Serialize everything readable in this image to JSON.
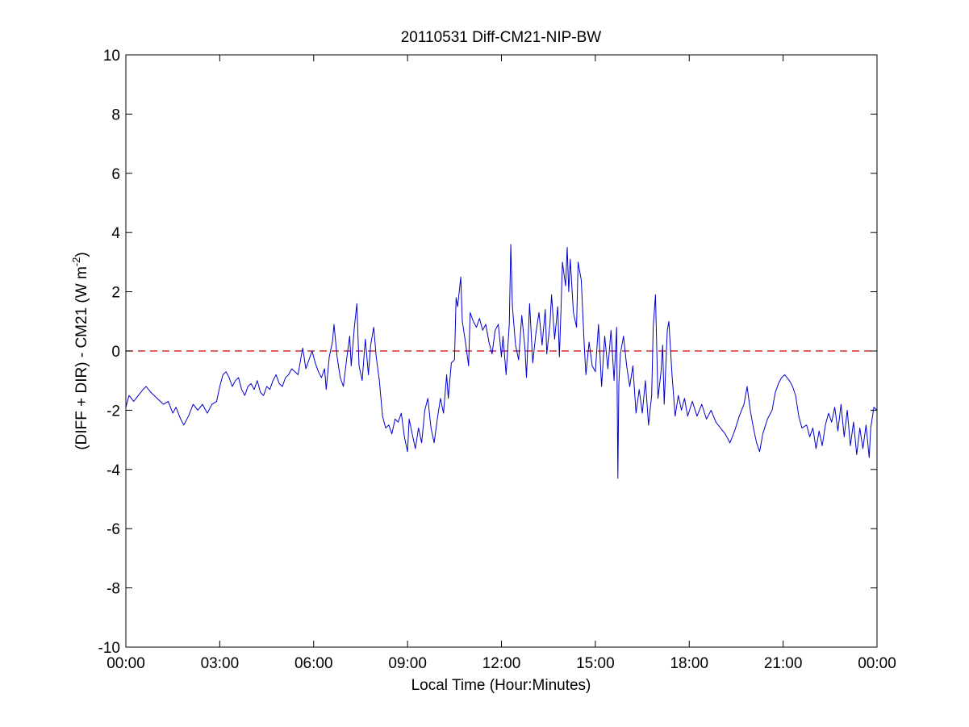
{
  "chart_data": {
    "type": "line",
    "title": "20110531 Diff-CM21-NIP-BW",
    "xlabel": "Local Time (Hour:Minutes)",
    "ylabel_main": "(DIFF + DIR) - CM21 (W m",
    "ylabel_sup": "-2",
    "ylabel_close": ")",
    "xlim": [
      0,
      24
    ],
    "ylim": [
      -10,
      10
    ],
    "x_ticks": [
      0,
      3,
      6,
      9,
      12,
      15,
      18,
      21,
      24
    ],
    "x_tick_labels": [
      "00:00",
      "03:00",
      "06:00",
      "09:00",
      "12:00",
      "15:00",
      "18:00",
      "21:00",
      "00:00"
    ],
    "y_ticks": [
      -10,
      -8,
      -6,
      -4,
      -2,
      0,
      2,
      4,
      6,
      8,
      10
    ],
    "y_tick_labels": [
      "-10",
      "-8",
      "-6",
      "-4",
      "-2",
      "0",
      "2",
      "4",
      "6",
      "8",
      "10"
    ],
    "grid": false,
    "reference_line": {
      "y": 0,
      "color": "#cc0000",
      "style": "dashed"
    },
    "series": [
      {
        "color": "#0000cc",
        "points": [
          [
            0.0,
            -1.9
          ],
          [
            0.1,
            -1.5
          ],
          [
            0.25,
            -1.7
          ],
          [
            0.4,
            -1.5
          ],
          [
            0.55,
            -1.3
          ],
          [
            0.65,
            -1.2
          ],
          [
            0.8,
            -1.4
          ],
          [
            1.0,
            -1.6
          ],
          [
            1.2,
            -1.8
          ],
          [
            1.35,
            -1.7
          ],
          [
            1.5,
            -2.1
          ],
          [
            1.6,
            -1.9
          ],
          [
            1.75,
            -2.3
          ],
          [
            1.85,
            -2.5
          ],
          [
            2.0,
            -2.2
          ],
          [
            2.15,
            -1.8
          ],
          [
            2.3,
            -2.0
          ],
          [
            2.45,
            -1.8
          ],
          [
            2.6,
            -2.1
          ],
          [
            2.75,
            -1.8
          ],
          [
            2.9,
            -1.7
          ],
          [
            3.0,
            -1.2
          ],
          [
            3.1,
            -0.8
          ],
          [
            3.2,
            -0.7
          ],
          [
            3.3,
            -0.9
          ],
          [
            3.4,
            -1.2
          ],
          [
            3.5,
            -1.0
          ],
          [
            3.6,
            -0.9
          ],
          [
            3.7,
            -1.3
          ],
          [
            3.8,
            -1.5
          ],
          [
            3.9,
            -1.2
          ],
          [
            4.0,
            -1.1
          ],
          [
            4.1,
            -1.3
          ],
          [
            4.2,
            -1.0
          ],
          [
            4.3,
            -1.4
          ],
          [
            4.4,
            -1.5
          ],
          [
            4.5,
            -1.2
          ],
          [
            4.6,
            -1.3
          ],
          [
            4.7,
            -1.0
          ],
          [
            4.8,
            -0.8
          ],
          [
            4.9,
            -1.1
          ],
          [
            5.0,
            -1.2
          ],
          [
            5.1,
            -0.9
          ],
          [
            5.2,
            -0.8
          ],
          [
            5.3,
            -0.6
          ],
          [
            5.4,
            -0.7
          ],
          [
            5.5,
            -0.8
          ],
          [
            5.55,
            -0.5
          ],
          [
            5.6,
            -0.2
          ],
          [
            5.65,
            0.1
          ],
          [
            5.75,
            -0.6
          ],
          [
            5.85,
            -0.3
          ],
          [
            5.95,
            0.0
          ],
          [
            6.05,
            -0.4
          ],
          [
            6.15,
            -0.7
          ],
          [
            6.25,
            -0.9
          ],
          [
            6.35,
            -0.6
          ],
          [
            6.4,
            -1.3
          ],
          [
            6.5,
            -0.2
          ],
          [
            6.6,
            0.3
          ],
          [
            6.65,
            0.9
          ],
          [
            6.75,
            -0.2
          ],
          [
            6.85,
            -0.9
          ],
          [
            6.95,
            -1.2
          ],
          [
            7.05,
            -0.3
          ],
          [
            7.15,
            0.5
          ],
          [
            7.2,
            -0.5
          ],
          [
            7.3,
            0.8
          ],
          [
            7.38,
            1.6
          ],
          [
            7.45,
            -0.5
          ],
          [
            7.55,
            -1.0
          ],
          [
            7.65,
            0.4
          ],
          [
            7.75,
            -0.8
          ],
          [
            7.82,
            0.2
          ],
          [
            7.92,
            0.8
          ],
          [
            8.0,
            -0.2
          ],
          [
            8.1,
            -1.0
          ],
          [
            8.2,
            -2.2
          ],
          [
            8.3,
            -2.6
          ],
          [
            8.4,
            -2.5
          ],
          [
            8.5,
            -2.8
          ],
          [
            8.6,
            -2.3
          ],
          [
            8.7,
            -2.4
          ],
          [
            8.8,
            -2.1
          ],
          [
            8.9,
            -2.9
          ],
          [
            9.0,
            -3.4
          ],
          [
            9.05,
            -2.3
          ],
          [
            9.15,
            -2.8
          ],
          [
            9.25,
            -3.3
          ],
          [
            9.35,
            -2.6
          ],
          [
            9.45,
            -3.1
          ],
          [
            9.55,
            -2.0
          ],
          [
            9.65,
            -1.6
          ],
          [
            9.75,
            -2.6
          ],
          [
            9.85,
            -3.1
          ],
          [
            9.95,
            -2.3
          ],
          [
            10.05,
            -1.6
          ],
          [
            10.15,
            -2.1
          ],
          [
            10.25,
            -0.8
          ],
          [
            10.3,
            -1.6
          ],
          [
            10.4,
            -0.4
          ],
          [
            10.5,
            -0.3
          ],
          [
            10.55,
            1.8
          ],
          [
            10.6,
            1.5
          ],
          [
            10.7,
            2.5
          ],
          [
            10.75,
            1.0
          ],
          [
            10.85,
            0.3
          ],
          [
            10.95,
            -0.5
          ],
          [
            11.0,
            1.3
          ],
          [
            11.1,
            1.0
          ],
          [
            11.2,
            0.8
          ],
          [
            11.3,
            1.1
          ],
          [
            11.4,
            0.7
          ],
          [
            11.5,
            0.9
          ],
          [
            11.6,
            0.3
          ],
          [
            11.7,
            -0.1
          ],
          [
            11.8,
            0.7
          ],
          [
            11.9,
            0.9
          ],
          [
            12.0,
            -0.2
          ],
          [
            12.05,
            0.5
          ],
          [
            12.15,
            -0.8
          ],
          [
            12.25,
            0.9
          ],
          [
            12.3,
            3.6
          ],
          [
            12.35,
            1.5
          ],
          [
            12.45,
            0.2
          ],
          [
            12.55,
            -0.3
          ],
          [
            12.65,
            1.2
          ],
          [
            12.75,
            0.1
          ],
          [
            12.8,
            -0.9
          ],
          [
            12.9,
            1.6
          ],
          [
            13.0,
            -0.4
          ],
          [
            13.1,
            0.6
          ],
          [
            13.2,
            1.3
          ],
          [
            13.3,
            0.2
          ],
          [
            13.4,
            1.4
          ],
          [
            13.45,
            -0.1
          ],
          [
            13.55,
            0.9
          ],
          [
            13.6,
            1.9
          ],
          [
            13.7,
            0.4
          ],
          [
            13.8,
            1.5
          ],
          [
            13.85,
            -0.2
          ],
          [
            13.9,
            1.3
          ],
          [
            13.95,
            3.0
          ],
          [
            14.05,
            2.2
          ],
          [
            14.1,
            3.5
          ],
          [
            14.15,
            2.0
          ],
          [
            14.2,
            3.1
          ],
          [
            14.3,
            1.3
          ],
          [
            14.4,
            0.8
          ],
          [
            14.45,
            3.0
          ],
          [
            14.55,
            2.4
          ],
          [
            14.65,
            0.1
          ],
          [
            14.7,
            -0.8
          ],
          [
            14.8,
            0.3
          ],
          [
            14.9,
            -0.5
          ],
          [
            15.0,
            -0.7
          ],
          [
            15.1,
            0.9
          ],
          [
            15.2,
            -1.2
          ],
          [
            15.3,
            0.5
          ],
          [
            15.4,
            -0.6
          ],
          [
            15.5,
            0.7
          ],
          [
            15.6,
            -1.0
          ],
          [
            15.68,
            0.8
          ],
          [
            15.72,
            -4.3
          ],
          [
            15.75,
            -1.1
          ],
          [
            15.8,
            -0.1
          ],
          [
            15.9,
            0.5
          ],
          [
            16.0,
            -0.5
          ],
          [
            16.1,
            -1.2
          ],
          [
            16.2,
            -0.5
          ],
          [
            16.3,
            -2.1
          ],
          [
            16.4,
            -1.3
          ],
          [
            16.5,
            -2.1
          ],
          [
            16.6,
            -1.0
          ],
          [
            16.7,
            -2.5
          ],
          [
            16.8,
            -1.5
          ],
          [
            16.85,
            0.8
          ],
          [
            16.92,
            1.9
          ],
          [
            17.0,
            -1.6
          ],
          [
            17.1,
            -0.7
          ],
          [
            17.15,
            0.2
          ],
          [
            17.2,
            -1.8
          ],
          [
            17.3,
            0.7
          ],
          [
            17.35,
            1.0
          ],
          [
            17.45,
            -0.8
          ],
          [
            17.55,
            -2.2
          ],
          [
            17.65,
            -1.5
          ],
          [
            17.75,
            -2.0
          ],
          [
            17.85,
            -1.6
          ],
          [
            17.95,
            -2.2
          ],
          [
            18.1,
            -1.7
          ],
          [
            18.25,
            -2.2
          ],
          [
            18.4,
            -1.8
          ],
          [
            18.55,
            -2.3
          ],
          [
            18.7,
            -2.0
          ],
          [
            18.85,
            -2.4
          ],
          [
            19.0,
            -2.6
          ],
          [
            19.15,
            -2.8
          ],
          [
            19.3,
            -3.1
          ],
          [
            19.45,
            -2.7
          ],
          [
            19.6,
            -2.2
          ],
          [
            19.75,
            -1.8
          ],
          [
            19.85,
            -1.2
          ],
          [
            19.95,
            -2.0
          ],
          [
            20.05,
            -2.6
          ],
          [
            20.15,
            -3.1
          ],
          [
            20.25,
            -3.4
          ],
          [
            20.35,
            -2.8
          ],
          [
            20.5,
            -2.3
          ],
          [
            20.65,
            -2.0
          ],
          [
            20.75,
            -1.4
          ],
          [
            20.85,
            -1.1
          ],
          [
            20.95,
            -0.9
          ],
          [
            21.05,
            -0.8
          ],
          [
            21.2,
            -1.0
          ],
          [
            21.3,
            -1.2
          ],
          [
            21.4,
            -1.5
          ],
          [
            21.5,
            -2.2
          ],
          [
            21.6,
            -2.6
          ],
          [
            21.75,
            -2.5
          ],
          [
            21.85,
            -2.9
          ],
          [
            21.95,
            -2.6
          ],
          [
            22.05,
            -3.3
          ],
          [
            22.15,
            -2.7
          ],
          [
            22.25,
            -3.2
          ],
          [
            22.35,
            -2.5
          ],
          [
            22.45,
            -2.1
          ],
          [
            22.55,
            -2.4
          ],
          [
            22.65,
            -1.9
          ],
          [
            22.75,
            -2.7
          ],
          [
            22.85,
            -1.8
          ],
          [
            22.95,
            -2.9
          ],
          [
            23.05,
            -2.0
          ],
          [
            23.15,
            -3.2
          ],
          [
            23.25,
            -2.4
          ],
          [
            23.35,
            -3.5
          ],
          [
            23.45,
            -2.6
          ],
          [
            23.55,
            -3.3
          ],
          [
            23.65,
            -2.5
          ],
          [
            23.75,
            -3.6
          ],
          [
            23.8,
            -2.6
          ],
          [
            23.9,
            -1.9
          ],
          [
            24.0,
            -2.0
          ]
        ]
      }
    ]
  }
}
